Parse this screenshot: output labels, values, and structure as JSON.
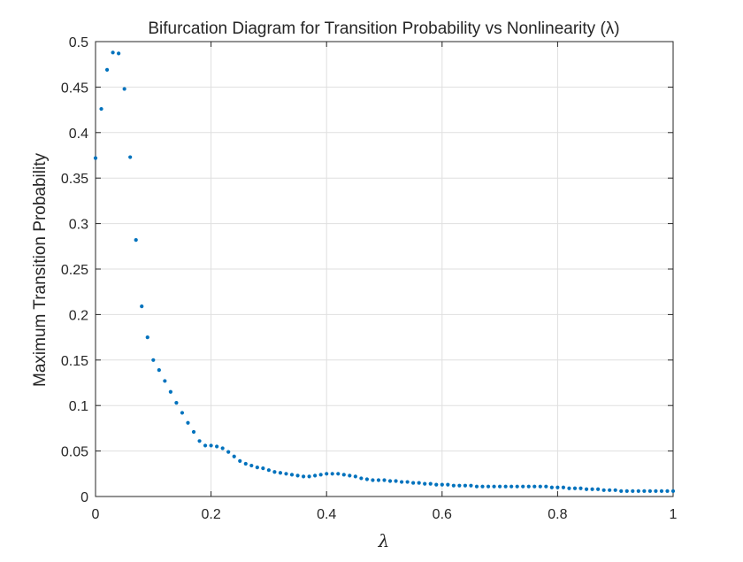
{
  "chart_data": {
    "type": "scatter",
    "title": "Bifurcation Diagram for Transition Probability vs Nonlinearity (λ)",
    "xlabel": "λ",
    "ylabel": "Maximum Transition Probability",
    "xlim": [
      0,
      1
    ],
    "ylim": [
      0,
      0.5
    ],
    "xticks": [
      0,
      0.2,
      0.4,
      0.6,
      0.8,
      1
    ],
    "xtick_labels": [
      "0",
      "0.2",
      "0.4",
      "0.6",
      "0.8",
      "1"
    ],
    "yticks": [
      0,
      0.05,
      0.1,
      0.15,
      0.2,
      0.25,
      0.3,
      0.35,
      0.4,
      0.45,
      0.5
    ],
    "ytick_labels": [
      "0",
      "0.05",
      "0.1",
      "0.15",
      "0.2",
      "0.25",
      "0.3",
      "0.35",
      "0.4",
      "0.45",
      "0.5"
    ],
    "grid": true,
    "marker_color": "#0072bd",
    "series": [
      {
        "x": [
          0,
          0.01,
          0.02,
          0.03,
          0.04,
          0.05,
          0.06,
          0.07,
          0.08,
          0.09,
          0.1,
          0.11,
          0.12,
          0.13,
          0.14,
          0.15,
          0.16,
          0.17,
          0.18,
          0.19,
          0.2,
          0.21,
          0.22,
          0.23,
          0.24,
          0.25,
          0.26,
          0.27,
          0.28,
          0.29,
          0.3,
          0.31,
          0.32,
          0.33,
          0.34,
          0.35,
          0.36,
          0.37,
          0.38,
          0.39,
          0.4,
          0.41,
          0.42,
          0.43,
          0.44,
          0.45,
          0.46,
          0.47,
          0.48,
          0.49,
          0.5,
          0.51,
          0.52,
          0.53,
          0.54,
          0.55,
          0.56,
          0.57,
          0.58,
          0.59,
          0.6,
          0.61,
          0.62,
          0.63,
          0.64,
          0.65,
          0.66,
          0.67,
          0.68,
          0.69,
          0.7,
          0.71,
          0.72,
          0.73,
          0.74,
          0.75,
          0.76,
          0.77,
          0.78,
          0.79,
          0.8,
          0.81,
          0.82,
          0.83,
          0.84,
          0.85,
          0.86,
          0.87,
          0.88,
          0.89,
          0.9,
          0.91,
          0.92,
          0.93,
          0.94,
          0.95,
          0.96,
          0.97,
          0.98,
          0.99,
          1
        ],
        "y": [
          0.372,
          0.426,
          0.469,
          0.488,
          0.487,
          0.448,
          0.373,
          0.282,
          0.209,
          0.175,
          0.15,
          0.139,
          0.127,
          0.115,
          0.103,
          0.092,
          0.081,
          0.071,
          0.061,
          0.056,
          0.056,
          0.055,
          0.053,
          0.049,
          0.044,
          0.039,
          0.036,
          0.034,
          0.032,
          0.031,
          0.029,
          0.027,
          0.026,
          0.025,
          0.024,
          0.023,
          0.022,
          0.022,
          0.023,
          0.024,
          0.025,
          0.025,
          0.025,
          0.024,
          0.023,
          0.022,
          0.02,
          0.019,
          0.018,
          0.018,
          0.018,
          0.017,
          0.017,
          0.016,
          0.016,
          0.015,
          0.015,
          0.014,
          0.014,
          0.013,
          0.013,
          0.013,
          0.012,
          0.012,
          0.012,
          0.012,
          0.011,
          0.011,
          0.011,
          0.011,
          0.011,
          0.011,
          0.011,
          0.011,
          0.011,
          0.011,
          0.011,
          0.011,
          0.011,
          0.01,
          0.01,
          0.01,
          0.009,
          0.009,
          0.009,
          0.008,
          0.008,
          0.008,
          0.007,
          0.007,
          0.007,
          0.006,
          0.006,
          0.006,
          0.006,
          0.006,
          0.006,
          0.006,
          0.006,
          0.006,
          0.006
        ]
      }
    ]
  }
}
